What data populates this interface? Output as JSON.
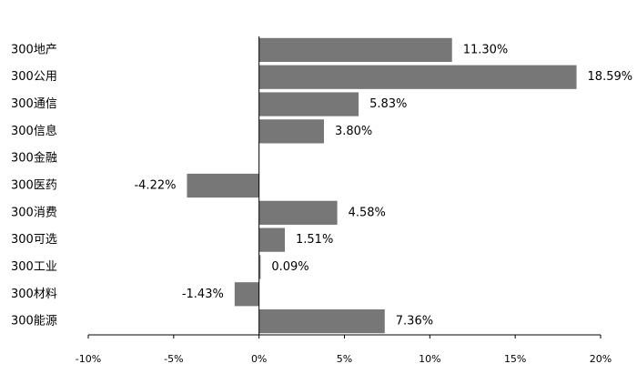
{
  "chart_data": {
    "type": "hbar",
    "categories": [
      "300地产",
      "300公用",
      "300通信",
      "300信息",
      "300金融",
      "300医药",
      "300消费",
      "300可选",
      "300工业",
      "300材料",
      "300能源"
    ],
    "values": [
      11.3,
      18.59,
      5.83,
      3.8,
      null,
      -4.22,
      4.58,
      1.51,
      0.09,
      -1.43,
      7.36
    ],
    "value_labels": [
      "11.30%",
      "18.59%",
      "5.83%",
      "3.80%",
      null,
      "-4.22%",
      "4.58%",
      "1.51%",
      "0.09%",
      "-1.43%",
      "7.36%"
    ],
    "color": "#777777",
    "xlim": [
      -10,
      20
    ],
    "xticks": [
      {
        "value": -10,
        "label": "-10%"
      },
      {
        "value": -5,
        "label": "-5%"
      },
      {
        "value": 0,
        "label": "0%"
      },
      {
        "value": 5,
        "label": "5%"
      },
      {
        "value": 10,
        "label": "10%"
      },
      {
        "value": 15,
        "label": "15%"
      },
      {
        "value": 20,
        "label": "20%"
      }
    ]
  }
}
